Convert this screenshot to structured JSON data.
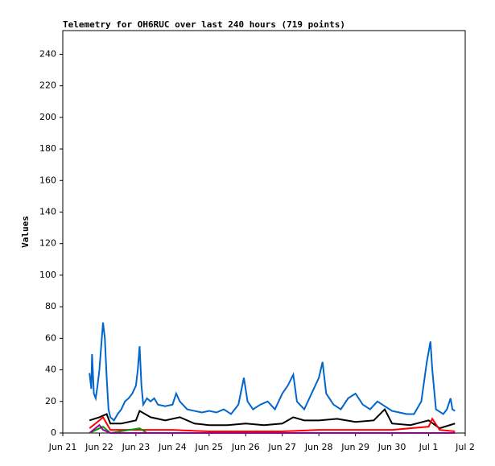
{
  "chart_data": {
    "type": "line",
    "title": "Telemetry for OH6RUC over last 240 hours (719 points)",
    "y_label": "Values",
    "ylim": [
      0,
      255
    ],
    "yticks": [
      0,
      20,
      40,
      60,
      80,
      100,
      120,
      140,
      160,
      180,
      200,
      220,
      240
    ],
    "xlim": [
      0,
      11
    ],
    "xticks": [
      {
        "value": 0,
        "label": "Jun 21"
      },
      {
        "value": 1,
        "label": "Jun 22"
      },
      {
        "value": 2,
        "label": "Jun 23"
      },
      {
        "value": 3,
        "label": "Jun 24"
      },
      {
        "value": 4,
        "label": "Jun 25"
      },
      {
        "value": 5,
        "label": "Jun 26"
      },
      {
        "value": 6,
        "label": "Jun 27"
      },
      {
        "value": 7,
        "label": "Jun 28"
      },
      {
        "value": 8,
        "label": "Jun 29"
      },
      {
        "value": 9,
        "label": "Jun 30"
      },
      {
        "value": 10,
        "label": "Jul 1"
      },
      {
        "value": 11,
        "label": "Jul 2"
      }
    ],
    "series": [
      {
        "color": "#0066cc",
        "x": [
          0.73,
          0.78,
          0.8,
          0.85,
          0.9,
          0.95,
          1.0,
          1.05,
          1.1,
          1.15,
          1.2,
          1.25,
          1.3,
          1.4,
          1.5,
          1.6,
          1.7,
          1.8,
          1.9,
          2.0,
          2.05,
          2.1,
          2.15,
          2.2,
          2.3,
          2.4,
          2.5,
          2.6,
          2.8,
          3.0,
          3.1,
          3.2,
          3.4,
          3.6,
          3.8,
          4.0,
          4.2,
          4.4,
          4.6,
          4.8,
          4.95,
          5.05,
          5.2,
          5.4,
          5.6,
          5.8,
          6.0,
          6.15,
          6.3,
          6.4,
          6.6,
          6.8,
          7.0,
          7.1,
          7.2,
          7.4,
          7.6,
          7.8,
          8.0,
          8.2,
          8.4,
          8.6,
          8.8,
          9.0,
          9.2,
          9.4,
          9.6,
          9.8,
          9.95,
          10.05,
          10.1,
          10.2,
          10.4,
          10.5,
          10.6,
          10.65,
          10.72
        ],
        "values": [
          38,
          28,
          50,
          25,
          22,
          30,
          40,
          55,
          70,
          60,
          35,
          15,
          10,
          8,
          12,
          15,
          20,
          22,
          25,
          30,
          40,
          55,
          30,
          18,
          22,
          20,
          22,
          18,
          17,
          18,
          25,
          20,
          15,
          14,
          13,
          14,
          13,
          15,
          12,
          18,
          35,
          20,
          15,
          18,
          20,
          15,
          25,
          30,
          37,
          20,
          15,
          25,
          35,
          45,
          25,
          18,
          15,
          22,
          25,
          18,
          15,
          20,
          17,
          14,
          13,
          12,
          12,
          20,
          45,
          58,
          40,
          15,
          12,
          15,
          22,
          15,
          14
        ]
      },
      {
        "color": "#000000",
        "x": [
          0.73,
          1.0,
          1.2,
          1.3,
          1.6,
          2.0,
          2.1,
          2.4,
          2.8,
          3.2,
          3.6,
          4.0,
          4.5,
          5.0,
          5.5,
          6.0,
          6.3,
          6.6,
          7.0,
          7.5,
          8.0,
          8.5,
          8.8,
          9.0,
          9.5,
          10.0,
          10.3,
          10.72
        ],
        "values": [
          8,
          10,
          12,
          6,
          6,
          8,
          14,
          10,
          8,
          10,
          6,
          5,
          5,
          6,
          5,
          6,
          10,
          8,
          8,
          9,
          7,
          8,
          15,
          6,
          5,
          8,
          3,
          6
        ]
      },
      {
        "color": "#ff0000",
        "x": [
          0.73,
          1.0,
          1.1,
          1.3,
          2.0,
          3.0,
          4.0,
          5.0,
          6.0,
          7.0,
          8.0,
          9.0,
          10.0,
          10.1,
          10.3,
          10.72
        ],
        "values": [
          3,
          8,
          10,
          2,
          2,
          2,
          1,
          1,
          1,
          2,
          2,
          2,
          4,
          9,
          2,
          1
        ]
      },
      {
        "color": "#009900",
        "x": [
          0.73,
          1.1,
          1.3,
          2.1,
          2.3,
          4.0,
          10.72
        ],
        "values": [
          0,
          4,
          0,
          3,
          0,
          0,
          0
        ]
      },
      {
        "color": "#990099",
        "x": [
          0.73,
          1.0,
          1.1,
          1.3,
          10.72
        ],
        "values": [
          0,
          5,
          2,
          0,
          0
        ]
      }
    ]
  }
}
